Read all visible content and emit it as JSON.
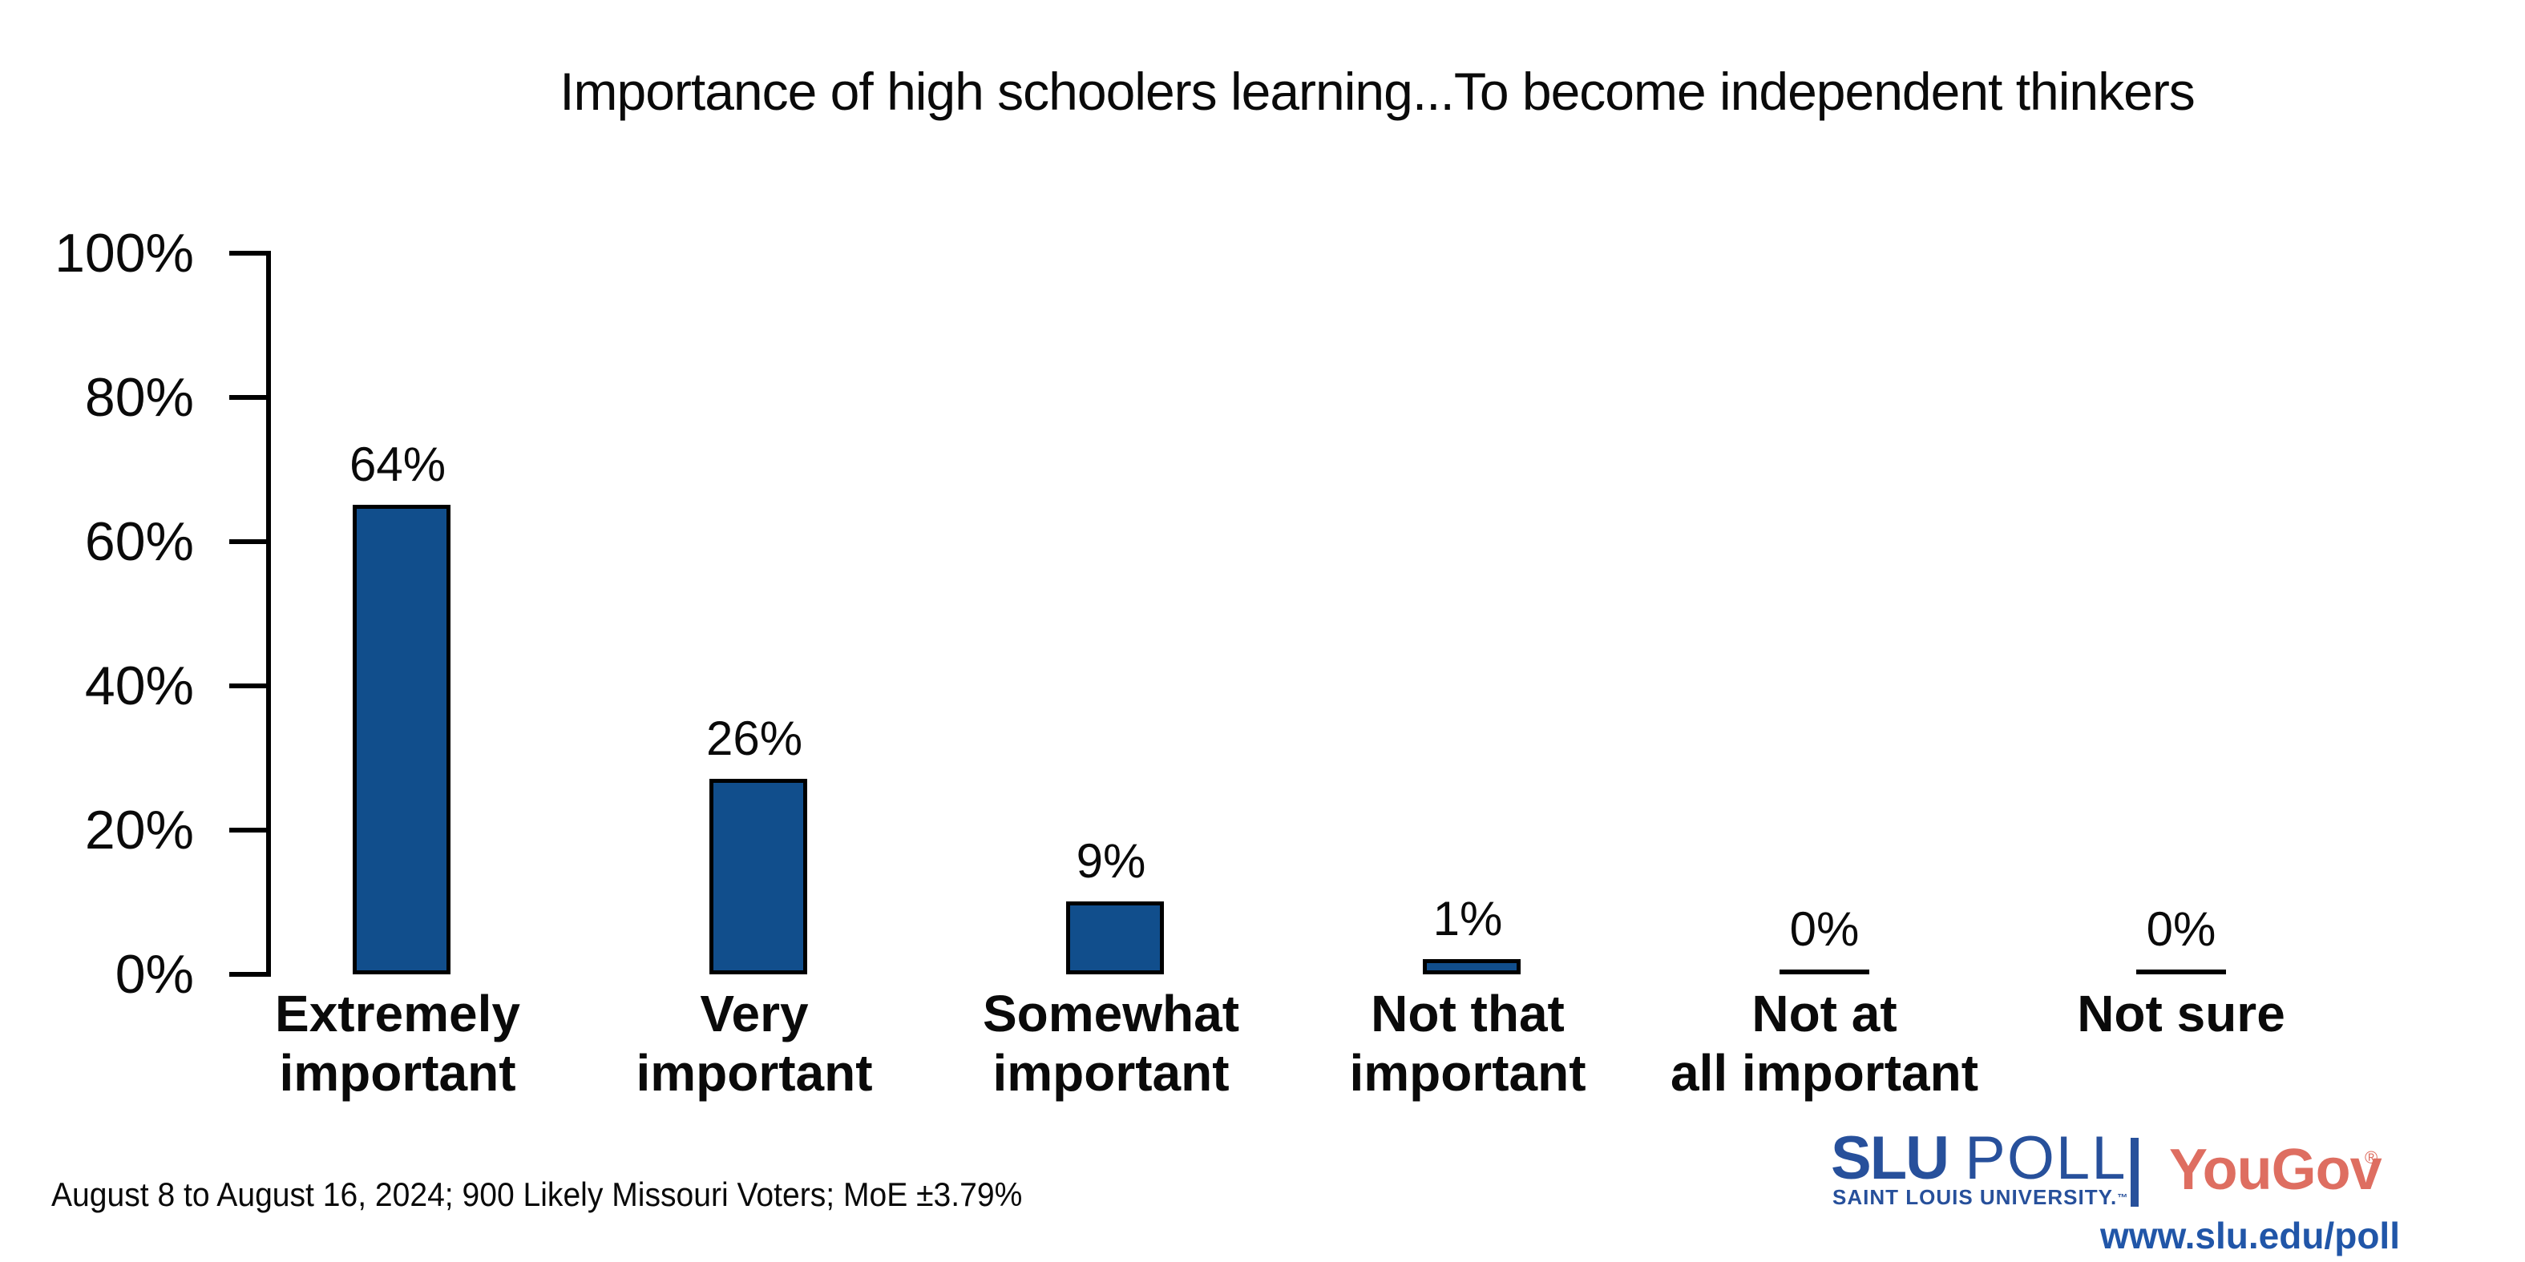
{
  "chart_data": {
    "type": "bar",
    "title": "Importance of high schoolers learning...To become independent thinkers",
    "categories": [
      "Extremely important",
      "Very important",
      "Somewhat important",
      "Not that important",
      "Not at all important",
      "Not sure"
    ],
    "category_lines": [
      [
        "Extremely",
        "important"
      ],
      [
        "Very",
        "important"
      ],
      [
        "Somewhat",
        "important"
      ],
      [
        "Not that",
        "important"
      ],
      [
        "Not at",
        "all important"
      ],
      [
        "Not sure"
      ]
    ],
    "values": [
      64,
      26,
      9,
      1,
      0,
      0
    ],
    "value_labels": [
      "64%",
      "26%",
      "9%",
      "1%",
      "0%",
      "0%"
    ],
    "yticks": [
      "0%",
      "20%",
      "40%",
      "60%",
      "80%",
      "100%"
    ],
    "ytick_values": [
      0,
      20,
      40,
      60,
      80,
      100
    ],
    "ylim": [
      0,
      100
    ],
    "xlabel": "",
    "ylabel": "",
    "grid": false,
    "legend": null,
    "bar_color": "#114E8C",
    "bar_border_color": "#000000",
    "axis_color": "#000000"
  },
  "footer": {
    "note": "August 8 to August 16, 2024; 900 Likely Missouri Voters; MoE ±3.79%"
  },
  "branding": {
    "slu": "SLU",
    "poll": "POLL",
    "subtitle": "SAINT LOUIS UNIVERSITY.",
    "trademark": "™",
    "yougov": "YouGov",
    "registered": "®",
    "url": "www.slu.edu/poll",
    "slu_blue": "#27509B",
    "yougov_coral": "#DE6E61",
    "url_blue": "#2156A8"
  }
}
